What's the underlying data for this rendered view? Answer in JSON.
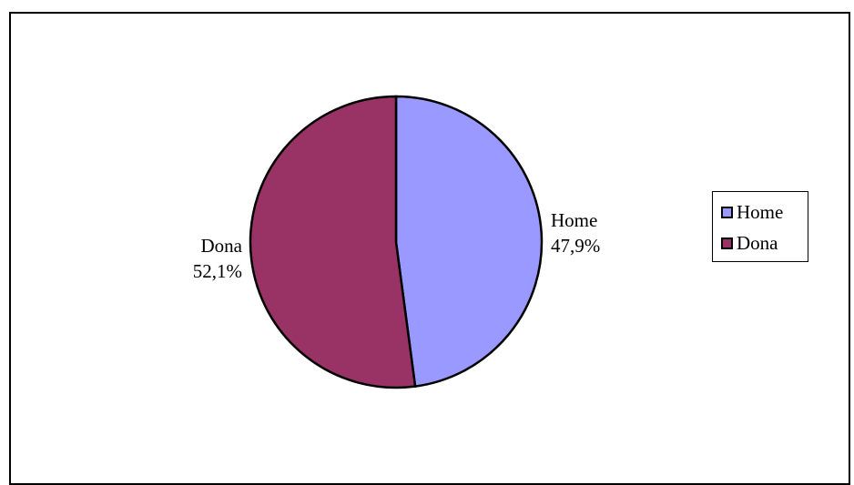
{
  "chart_data": {
    "type": "pie",
    "categories": [
      "Home",
      "Dona"
    ],
    "values": [
      47.9,
      52.1
    ],
    "value_labels": [
      "47,9%",
      "52,1%"
    ],
    "colors": [
      "#9999ff",
      "#993366"
    ],
    "legend": {
      "placement": "right",
      "entries": [
        "Home",
        "Dona"
      ]
    }
  }
}
